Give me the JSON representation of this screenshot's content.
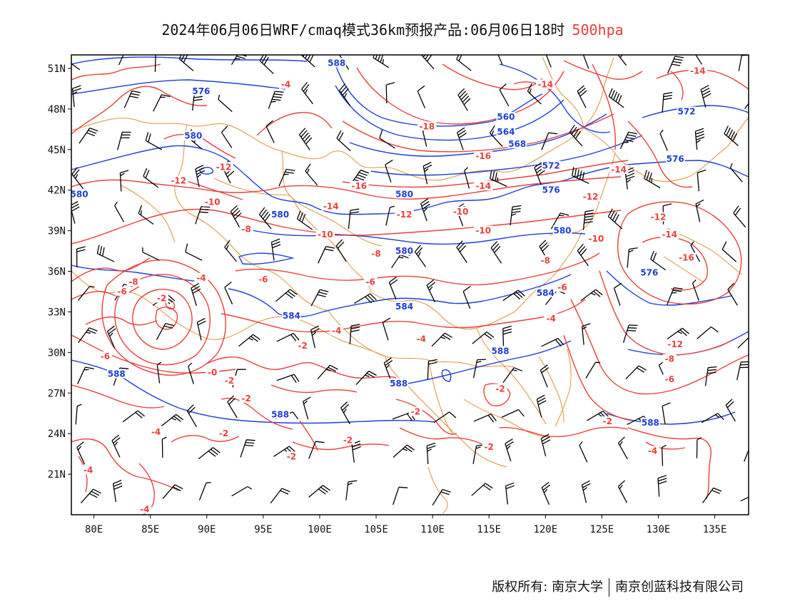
{
  "title": {
    "main": "2024年06月06日WRF/cmaq模式36km预报产品:06月06日18时",
    "level": "500hpa",
    "level_color": "#e8413c"
  },
  "axes": {
    "lat_labels": [
      "51N",
      "48N",
      "45N",
      "42N",
      "39N",
      "36N",
      "33N",
      "30N",
      "27N",
      "24N",
      "21N"
    ],
    "lon_labels": [
      "80E",
      "85E",
      "90E",
      "95E",
      "100E",
      "105E",
      "110E",
      "115E",
      "120E",
      "125E",
      "130E",
      "135E"
    ],
    "lat_values": [
      51,
      48,
      45,
      42,
      39,
      36,
      33,
      30,
      27,
      24,
      21
    ],
    "lon_values": [
      80,
      85,
      90,
      95,
      100,
      105,
      110,
      115,
      120,
      125,
      130,
      135
    ],
    "lon_range": [
      78,
      138
    ],
    "lat_range": [
      18,
      52
    ]
  },
  "colors": {
    "height_contour": "#1f3fd8",
    "temperature_contour": "#e8413c",
    "boundary": "#e0913a",
    "wind_barb": "#000000"
  },
  "height_labels": [
    {
      "text": "588",
      "lon": 101.5,
      "lat": 51.3
    },
    {
      "text": "576",
      "lon": 89.5,
      "lat": 49.2
    },
    {
      "text": "580",
      "lon": 88.8,
      "lat": 45.9
    },
    {
      "text": "560",
      "lon": 116.5,
      "lat": 47.3
    },
    {
      "text": "564",
      "lon": 116.5,
      "lat": 46.2
    },
    {
      "text": "568",
      "lon": 117.5,
      "lat": 45.3
    },
    {
      "text": "572",
      "lon": 120.5,
      "lat": 43.7
    },
    {
      "text": "572",
      "lon": 132.5,
      "lat": 47.7
    },
    {
      "text": "576",
      "lon": 131.5,
      "lat": 44.2
    },
    {
      "text": "576",
      "lon": 120.5,
      "lat": 41.9
    },
    {
      "text": "580",
      "lon": 78.7,
      "lat": 41.6
    },
    {
      "text": "580",
      "lon": 96.5,
      "lat": 40.1
    },
    {
      "text": "580",
      "lon": 107.5,
      "lat": 41.6
    },
    {
      "text": "580",
      "lon": 121.5,
      "lat": 38.9
    },
    {
      "text": "580",
      "lon": 107.5,
      "lat": 37.4
    },
    {
      "text": "576",
      "lon": 129.2,
      "lat": 35.8
    },
    {
      "text": "584",
      "lon": 120.0,
      "lat": 34.3
    },
    {
      "text": "584",
      "lon": 97.5,
      "lat": 32.6
    },
    {
      "text": "584",
      "lon": 107.5,
      "lat": 33.3
    },
    {
      "text": "588",
      "lon": 116.0,
      "lat": 30.0
    },
    {
      "text": "588",
      "lon": 82.0,
      "lat": 28.3
    },
    {
      "text": "588",
      "lon": 107.0,
      "lat": 27.6
    },
    {
      "text": "588",
      "lon": 96.5,
      "lat": 25.3
    },
    {
      "text": "588",
      "lon": 129.3,
      "lat": 24.7
    }
  ],
  "temperature_labels": [
    {
      "text": "-4",
      "lon": 97.0,
      "lat": 49.7
    },
    {
      "text": "-14",
      "lon": 120.0,
      "lat": 49.7
    },
    {
      "text": "-14",
      "lon": 133.5,
      "lat": 50.7
    },
    {
      "text": "-18",
      "lon": 109.5,
      "lat": 46.6
    },
    {
      "text": "-16",
      "lon": 114.5,
      "lat": 44.4
    },
    {
      "text": "-16",
      "lon": 103.5,
      "lat": 42.2
    },
    {
      "text": "-14",
      "lon": 114.5,
      "lat": 42.2
    },
    {
      "text": "-12",
      "lon": 124.0,
      "lat": 41.4
    },
    {
      "text": "-12",
      "lon": 91.5,
      "lat": 43.6
    },
    {
      "text": "-12",
      "lon": 87.5,
      "lat": 42.6
    },
    {
      "text": "-14",
      "lon": 126.5,
      "lat": 43.4
    },
    {
      "text": "-14",
      "lon": 101.0,
      "lat": 40.7
    },
    {
      "text": "-12",
      "lon": 107.5,
      "lat": 40.1
    },
    {
      "text": "-10",
      "lon": 90.5,
      "lat": 41.0
    },
    {
      "text": "-10",
      "lon": 112.5,
      "lat": 40.3
    },
    {
      "text": "-10",
      "lon": 114.5,
      "lat": 38.9
    },
    {
      "text": "-10",
      "lon": 100.5,
      "lat": 38.6
    },
    {
      "text": "-10",
      "lon": 124.5,
      "lat": 38.3
    },
    {
      "text": "-12",
      "lon": 130.0,
      "lat": 39.9
    },
    {
      "text": "-14",
      "lon": 131.0,
      "lat": 38.6
    },
    {
      "text": "-16",
      "lon": 132.5,
      "lat": 36.9
    },
    {
      "text": "-8",
      "lon": 93.5,
      "lat": 39.0
    },
    {
      "text": "-8",
      "lon": 105.0,
      "lat": 37.2
    },
    {
      "text": "-8",
      "lon": 120.0,
      "lat": 36.7
    },
    {
      "text": "-6",
      "lon": 95.0,
      "lat": 35.3
    },
    {
      "text": "-6",
      "lon": 104.5,
      "lat": 35.1
    },
    {
      "text": "-6",
      "lon": 121.5,
      "lat": 34.7
    },
    {
      "text": "-4",
      "lon": 89.5,
      "lat": 35.4
    },
    {
      "text": "-4",
      "lon": 120.5,
      "lat": 32.4
    },
    {
      "text": "-4",
      "lon": 101.5,
      "lat": 31.5
    },
    {
      "text": "-4",
      "lon": 109.0,
      "lat": 30.9
    },
    {
      "text": "-2",
      "lon": 86.0,
      "lat": 33.9
    },
    {
      "text": "-2",
      "lon": 98.5,
      "lat": 30.4
    },
    {
      "text": "-8",
      "lon": 83.5,
      "lat": 35.1
    },
    {
      "text": "-6",
      "lon": 82.5,
      "lat": 34.4
    },
    {
      "text": "-6",
      "lon": 81.0,
      "lat": 29.6
    },
    {
      "text": "-12",
      "lon": 131.5,
      "lat": 30.5
    },
    {
      "text": "-8",
      "lon": 131.0,
      "lat": 29.4
    },
    {
      "text": "-6",
      "lon": 131.0,
      "lat": 27.9
    },
    {
      "text": "-0",
      "lon": 90.5,
      "lat": 28.4
    },
    {
      "text": "-2",
      "lon": 92.0,
      "lat": 27.8
    },
    {
      "text": "-2",
      "lon": 93.5,
      "lat": 26.5
    },
    {
      "text": "-2",
      "lon": 116.0,
      "lat": 27.2
    },
    {
      "text": "-2",
      "lon": 108.5,
      "lat": 25.5
    },
    {
      "text": "-2",
      "lon": 91.5,
      "lat": 23.9
    },
    {
      "text": "-2",
      "lon": 102.5,
      "lat": 23.4
    },
    {
      "text": "-2",
      "lon": 115.0,
      "lat": 22.9
    },
    {
      "text": "-2",
      "lon": 97.5,
      "lat": 22.2
    },
    {
      "text": "-2",
      "lon": 125.5,
      "lat": 24.8
    },
    {
      "text": "-4",
      "lon": 85.5,
      "lat": 24.0
    },
    {
      "text": "-4",
      "lon": 79.5,
      "lat": 21.2
    },
    {
      "text": "-4",
      "lon": 84.5,
      "lat": 18.3
    },
    {
      "text": "-4",
      "lon": 129.5,
      "lat": 22.6
    }
  ],
  "footer": {
    "left": "版权所有: 南京大学",
    "right": "南京创蓝科技有限公司"
  }
}
